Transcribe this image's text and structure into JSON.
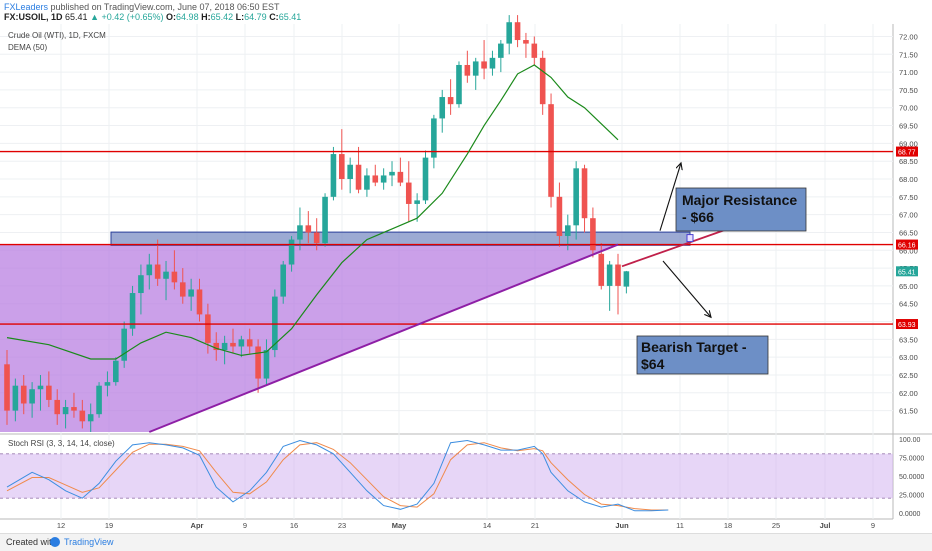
{
  "header": {
    "brand": "FXLeaders",
    "published": "published on TradingView.com, June 07, 2018 06:50 EST",
    "symbol": "FX:USOIL, 1D",
    "last": "65.41",
    "change": "▲ +0.42 (+0.65%)",
    "o_label": "O:",
    "o": "64.98",
    "h_label": "H:",
    "h": "65.42",
    "l_label": "L:",
    "l": "64.79",
    "c_label": "C:",
    "c": "65.41"
  },
  "symbol_line": "Crude Oil (WTI), 1D, FXCM",
  "indicator_line": "DEMA (50)",
  "stoch_label": "Stoch RSI (3, 3, 14, 14, close)",
  "footer": {
    "created_with": "Created with",
    "brand": "TradingView"
  },
  "annotations": {
    "resistance_box": [
      "Major Resistance",
      "- $66"
    ],
    "target_box": [
      "Bearish Target -",
      "$64"
    ]
  },
  "colors": {
    "up": "#26a69a",
    "down": "#ef5350",
    "hline": "#e00000",
    "dema": "#1b8a1b",
    "triangle_fill": "#b77be0",
    "zone_fill": "#7b8ec4",
    "note_fill": "#6d8fc6",
    "stoch_k": "#3d8ee0",
    "stoch_d": "#f08a4b"
  },
  "chart_data": {
    "type": "candlestick",
    "ylim": [
      60.9,
      72.35
    ],
    "price_ticks": [
      "72.00",
      "71.50",
      "71.00",
      "70.50",
      "70.00",
      "69.50",
      "69.00",
      "68.50",
      "68.00",
      "67.50",
      "67.00",
      "66.50",
      "66.00",
      "65.50",
      "65.00",
      "64.50",
      "64.00",
      "63.50",
      "63.00",
      "62.50",
      "62.00",
      "61.50"
    ],
    "x_ticks": [
      "12",
      "19",
      "Apr",
      "9",
      "16",
      "23",
      "May",
      "14",
      "21",
      "Jun",
      "11",
      "18",
      "25",
      "Jul",
      "9"
    ],
    "price_labels": [
      {
        "value": 68.77,
        "text": "68.77",
        "color": "#e00000"
      },
      {
        "value": 66.16,
        "text": "66.16",
        "color": "#e00000"
      },
      {
        "value": 65.41,
        "text": "65.41",
        "color": "#26a69a"
      },
      {
        "value": 63.93,
        "text": "63.93",
        "color": "#e00000"
      }
    ],
    "horizontal_lines": [
      68.77,
      66.16,
      63.93
    ],
    "resistance_zone": [
      66.14,
      66.51
    ],
    "trendline": [
      {
        "bar": 17,
        "price": 60.9
      },
      {
        "bar": 73,
        "price": 66.16
      }
    ],
    "candles": [
      [
        62.8,
        63.2,
        61.1,
        61.5
      ],
      [
        61.5,
        62.4,
        61.2,
        62.2
      ],
      [
        62.2,
        62.5,
        61.4,
        61.7
      ],
      [
        61.7,
        62.3,
        61.3,
        62.1
      ],
      [
        62.1,
        62.5,
        61.5,
        62.2
      ],
      [
        62.2,
        62.6,
        61.6,
        61.8
      ],
      [
        61.8,
        62.1,
        61.1,
        61.4
      ],
      [
        61.4,
        61.8,
        61.0,
        61.6
      ],
      [
        61.6,
        62.0,
        61.3,
        61.5
      ],
      [
        61.5,
        61.8,
        61.0,
        61.2
      ],
      [
        61.2,
        61.7,
        60.9,
        61.4
      ],
      [
        61.4,
        62.3,
        61.3,
        62.2
      ],
      [
        62.2,
        62.6,
        61.9,
        62.3
      ],
      [
        62.3,
        63.0,
        62.2,
        62.9
      ],
      [
        62.9,
        64.0,
        62.7,
        63.8
      ],
      [
        63.8,
        65.0,
        63.6,
        64.8
      ],
      [
        64.8,
        65.6,
        64.2,
        65.3
      ],
      [
        65.3,
        65.9,
        64.9,
        65.6
      ],
      [
        65.6,
        66.3,
        65.0,
        65.2
      ],
      [
        65.2,
        65.7,
        64.6,
        65.4
      ],
      [
        65.4,
        66.0,
        64.9,
        65.1
      ],
      [
        65.1,
        65.5,
        64.5,
        64.7
      ],
      [
        64.7,
        65.2,
        64.3,
        64.9
      ],
      [
        64.9,
        65.2,
        64.0,
        64.2
      ],
      [
        64.2,
        64.5,
        63.1,
        63.4
      ],
      [
        63.4,
        63.7,
        62.9,
        63.2
      ],
      [
        63.2,
        63.6,
        62.8,
        63.4
      ],
      [
        63.4,
        63.8,
        63.1,
        63.3
      ],
      [
        63.3,
        63.6,
        63.0,
        63.5
      ],
      [
        63.5,
        63.8,
        63.1,
        63.3
      ],
      [
        63.3,
        63.5,
        62.0,
        62.4
      ],
      [
        62.4,
        63.5,
        62.2,
        63.2
      ],
      [
        63.2,
        64.9,
        63.0,
        64.7
      ],
      [
        64.7,
        65.7,
        64.5,
        65.6
      ],
      [
        65.6,
        66.4,
        65.4,
        66.3
      ],
      [
        66.3,
        67.2,
        66.0,
        66.7
      ],
      [
        66.7,
        67.1,
        66.2,
        66.5
      ],
      [
        66.5,
        66.9,
        66.0,
        66.2
      ],
      [
        66.2,
        67.6,
        66.1,
        67.5
      ],
      [
        67.5,
        68.9,
        67.4,
        68.7
      ],
      [
        68.7,
        69.4,
        67.7,
        68.0
      ],
      [
        68.0,
        68.6,
        67.6,
        68.4
      ],
      [
        68.4,
        68.9,
        67.6,
        67.7
      ],
      [
        67.7,
        68.3,
        67.5,
        68.1
      ],
      [
        68.1,
        68.4,
        67.8,
        67.9
      ],
      [
        67.9,
        68.3,
        67.7,
        68.1
      ],
      [
        68.1,
        68.5,
        67.8,
        68.2
      ],
      [
        68.2,
        68.6,
        67.8,
        67.9
      ],
      [
        67.9,
        68.5,
        66.8,
        67.3
      ],
      [
        67.3,
        67.6,
        66.8,
        67.4
      ],
      [
        67.4,
        68.8,
        67.3,
        68.6
      ],
      [
        68.6,
        69.8,
        68.3,
        69.7
      ],
      [
        69.7,
        70.5,
        69.3,
        70.3
      ],
      [
        70.3,
        70.8,
        69.8,
        70.1
      ],
      [
        70.1,
        71.3,
        70.0,
        71.2
      ],
      [
        71.2,
        71.6,
        70.7,
        70.9
      ],
      [
        70.9,
        71.4,
        70.5,
        71.3
      ],
      [
        71.3,
        71.9,
        70.8,
        71.1
      ],
      [
        71.1,
        71.6,
        70.9,
        71.4
      ],
      [
        71.4,
        71.9,
        71.0,
        71.8
      ],
      [
        71.8,
        72.6,
        71.5,
        72.4
      ],
      [
        72.4,
        72.6,
        71.7,
        71.9
      ],
      [
        71.9,
        72.1,
        71.4,
        71.8
      ],
      [
        71.8,
        72.0,
        71.2,
        71.4
      ],
      [
        71.4,
        71.6,
        69.8,
        70.1
      ],
      [
        70.1,
        70.4,
        67.2,
        67.5
      ],
      [
        67.5,
        67.9,
        66.1,
        66.4
      ],
      [
        66.4,
        67.0,
        66.0,
        66.7
      ],
      [
        66.7,
        68.5,
        66.3,
        68.3
      ],
      [
        68.3,
        68.4,
        66.5,
        66.9
      ],
      [
        66.9,
        67.2,
        65.8,
        66.0
      ],
      [
        65.9,
        66.2,
        64.9,
        65.0
      ],
      [
        65.0,
        65.7,
        64.3,
        65.6
      ],
      [
        65.6,
        65.9,
        64.2,
        65.0
      ],
      [
        64.98,
        65.42,
        64.79,
        65.41
      ]
    ],
    "dema": [
      [
        0,
        63.55
      ],
      [
        5,
        63.35
      ],
      [
        10,
        62.95
      ],
      [
        13,
        62.95
      ],
      [
        16,
        63.4
      ],
      [
        19,
        63.7
      ],
      [
        22,
        63.55
      ],
      [
        25,
        63.25
      ],
      [
        28,
        63.05
      ],
      [
        31,
        63.15
      ],
      [
        34,
        63.8
      ],
      [
        37,
        64.75
      ],
      [
        40,
        65.65
      ],
      [
        43,
        66.3
      ],
      [
        46,
        66.6
      ],
      [
        49,
        66.9
      ],
      [
        52,
        67.6
      ],
      [
        55,
        68.7
      ],
      [
        57,
        69.5
      ],
      [
        59,
        70.2
      ],
      [
        61,
        70.95
      ],
      [
        63,
        71.2
      ],
      [
        65,
        70.85
      ],
      [
        67,
        70.3
      ],
      [
        69,
        70.0
      ],
      [
        71,
        69.55
      ],
      [
        73,
        69.1
      ]
    ],
    "stoch_ticks": [
      "100.00",
      "75.0000",
      "50.0000",
      "25.0000",
      "0.0000"
    ],
    "stoch_k": [
      [
        0,
        35
      ],
      [
        3,
        55
      ],
      [
        5,
        45
      ],
      [
        7,
        30
      ],
      [
        9,
        20
      ],
      [
        11,
        40
      ],
      [
        13,
        70
      ],
      [
        15,
        92
      ],
      [
        17,
        95
      ],
      [
        19,
        92
      ],
      [
        21,
        88
      ],
      [
        23,
        78
      ],
      [
        25,
        35
      ],
      [
        27,
        15
      ],
      [
        29,
        30
      ],
      [
        31,
        55
      ],
      [
        33,
        90
      ],
      [
        35,
        98
      ],
      [
        37,
        92
      ],
      [
        39,
        80
      ],
      [
        41,
        55
      ],
      [
        43,
        30
      ],
      [
        45,
        10
      ],
      [
        47,
        5
      ],
      [
        49,
        12
      ],
      [
        51,
        40
      ],
      [
        53,
        95
      ],
      [
        55,
        98
      ],
      [
        57,
        92
      ],
      [
        59,
        85
      ],
      [
        61,
        85
      ],
      [
        63,
        90
      ],
      [
        64,
        80
      ],
      [
        65,
        55
      ],
      [
        67,
        30
      ],
      [
        69,
        15
      ],
      [
        71,
        8
      ],
      [
        73,
        12
      ],
      [
        75,
        3
      ],
      [
        77,
        3
      ],
      [
        79,
        4
      ]
    ],
    "stoch_d": [
      [
        0,
        30
      ],
      [
        3,
        48
      ],
      [
        5,
        48
      ],
      [
        7,
        38
      ],
      [
        9,
        28
      ],
      [
        11,
        34
      ],
      [
        13,
        58
      ],
      [
        15,
        82
      ],
      [
        17,
        93
      ],
      [
        19,
        93
      ],
      [
        21,
        90
      ],
      [
        23,
        84
      ],
      [
        25,
        55
      ],
      [
        27,
        28
      ],
      [
        29,
        26
      ],
      [
        31,
        42
      ],
      [
        33,
        72
      ],
      [
        35,
        92
      ],
      [
        37,
        95
      ],
      [
        39,
        86
      ],
      [
        41,
        68
      ],
      [
        43,
        45
      ],
      [
        45,
        22
      ],
      [
        47,
        10
      ],
      [
        49,
        8
      ],
      [
        51,
        26
      ],
      [
        53,
        72
      ],
      [
        55,
        92
      ],
      [
        57,
        95
      ],
      [
        59,
        88
      ],
      [
        61,
        84
      ],
      [
        63,
        87
      ],
      [
        64,
        84
      ],
      [
        65,
        68
      ],
      [
        67,
        45
      ],
      [
        69,
        25
      ],
      [
        71,
        12
      ],
      [
        73,
        10
      ],
      [
        75,
        6
      ],
      [
        77,
        4
      ],
      [
        79,
        4
      ]
    ]
  }
}
